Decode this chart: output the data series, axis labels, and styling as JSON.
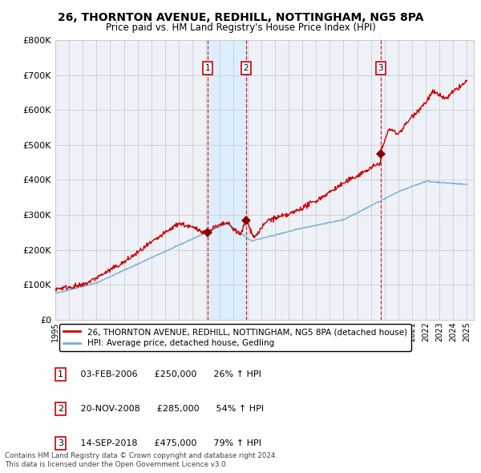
{
  "title": "26, THORNTON AVENUE, REDHILL, NOTTINGHAM, NG5 8PA",
  "subtitle": "Price paid vs. HM Land Registry's House Price Index (HPI)",
  "legend_line1": "26, THORNTON AVENUE, REDHILL, NOTTINGHAM, NG5 8PA (detached house)",
  "legend_line2": "HPI: Average price, detached house, Gedling",
  "footer1": "Contains HM Land Registry data © Crown copyright and database right 2024.",
  "footer2": "This data is licensed under the Open Government Licence v3.0.",
  "transactions": [
    {
      "num": 1,
      "date": "03-FEB-2006",
      "price": 250000,
      "pct": "26%",
      "dir": "↑"
    },
    {
      "num": 2,
      "date": "20-NOV-2008",
      "price": 285000,
      "pct": "54%",
      "dir": "↑"
    },
    {
      "num": 3,
      "date": "14-SEP-2018",
      "price": 475000,
      "pct": "79%",
      "dir": "↑"
    }
  ],
  "sale_dates_decimal": [
    2006.09,
    2008.9,
    2018.71
  ],
  "sale_prices": [
    250000,
    285000,
    475000
  ],
  "red_color": "#cc0000",
  "blue_color": "#7bafd4",
  "marker_color": "#8b0000",
  "vline_color": "#cc0000",
  "vspan_color": "#ddeeff",
  "grid_color": "#cccccc",
  "background_color": "#eef2f8",
  "ylim": [
    0,
    800000
  ],
  "yticks": [
    0,
    100000,
    200000,
    300000,
    400000,
    500000,
    600000,
    700000,
    800000
  ],
  "xlim": [
    1995,
    2025.5
  ],
  "xlabel_years": [
    1995,
    1996,
    1997,
    1998,
    1999,
    2000,
    2001,
    2002,
    2003,
    2004,
    2005,
    2006,
    2007,
    2008,
    2009,
    2010,
    2011,
    2012,
    2013,
    2014,
    2015,
    2016,
    2017,
    2018,
    2019,
    2020,
    2021,
    2022,
    2023,
    2024,
    2025
  ]
}
